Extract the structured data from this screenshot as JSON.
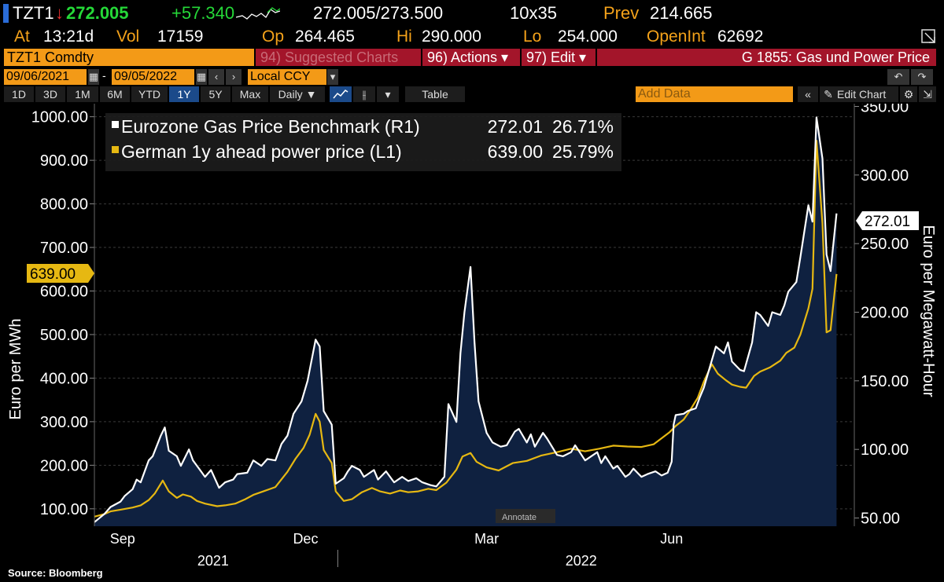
{
  "quote": {
    "ticker": "TZT1",
    "arrow": "↓",
    "last": "272.005",
    "change": "+57.340",
    "bid_ask": "272.005/273.500",
    "size": "10x35",
    "prev_label": "Prev",
    "prev": "214.665",
    "at_label": "At",
    "time": "13:21d",
    "vol_label": "Vol",
    "vol": "17159",
    "op_label": "Op",
    "open": "264.465",
    "hi_label": "Hi",
    "high": "290.000",
    "lo_label": "Lo",
    "low": "254.000",
    "oi_label": "OpenInt",
    "open_interest": "62692"
  },
  "menubar": {
    "security": "TZT1 Comdty",
    "suggested": "94) Suggested Charts",
    "actions": "96) Actions ▾",
    "edit": "97) Edit ▾",
    "title": "G 1855: Gas und Power Price"
  },
  "dates": {
    "start": "09/06/2021",
    "end": "09/05/2022",
    "currency": "Local CCY"
  },
  "toolbar": {
    "periods": [
      "1D",
      "3D",
      "1M",
      "6M",
      "YTD",
      "1Y",
      "5Y",
      "Max"
    ],
    "active_period": "1Y",
    "frequency": "Daily ▼",
    "table": "Table",
    "add_data": "Add Data",
    "edit_chart": "Edit Chart"
  },
  "source": "Source: Bloomberg",
  "annotate": "Annotate",
  "colors": {
    "gas": "#ffffff",
    "power": "#e6b812",
    "fill": "#0f2140",
    "accent": "#f39a17"
  },
  "chart_data": {
    "type": "line",
    "title": "",
    "legend": [
      {
        "text": "Eurozone Gas Price Benchmark (R1)",
        "last": "272.01",
        "pct": "26.71%"
      },
      {
        "text": "German 1y ahead power price (L1)",
        "last": "639.00",
        "pct": "25.79%"
      }
    ],
    "legend_position": "top-left",
    "ylabel_left": "Euro per MWh",
    "ylabel_right": "Euro per Megawatt-Hour",
    "y_left": {
      "ticks": [
        "100.00",
        "200.00",
        "300.00",
        "400.00",
        "500.00",
        "600.00",
        "700.00",
        "800.00",
        "900.00",
        "1000.00"
      ],
      "range": [
        60,
        1030
      ]
    },
    "y_right": {
      "ticks": [
        "50.00",
        "100.00",
        "150.00",
        "200.00",
        "250.00",
        "300.00",
        "350.00"
      ],
      "range": [
        44,
        352
      ]
    },
    "x_ticks": [
      "Sep",
      "Dec",
      "Mar",
      "Jun"
    ],
    "x_years": [
      "2021",
      "2022"
    ],
    "x_range": [
      "2021-09-01",
      "2022-09-06"
    ],
    "last_left": "639.00",
    "last_right": "272.01",
    "grid": true,
    "series": [
      {
        "name": "Eurozone Gas Price Benchmark",
        "axis": "right",
        "points": [
          [
            "2021-09-01",
            47
          ],
          [
            "2021-09-06",
            53
          ],
          [
            "2021-09-09",
            58
          ],
          [
            "2021-09-14",
            62
          ],
          [
            "2021-09-16",
            66
          ],
          [
            "2021-09-20",
            71
          ],
          [
            "2021-09-22",
            78
          ],
          [
            "2021-09-24",
            76
          ],
          [
            "2021-09-28",
            92
          ],
          [
            "2021-09-30",
            95
          ],
          [
            "2021-10-04",
            110
          ],
          [
            "2021-10-06",
            116
          ],
          [
            "2021-10-08",
            99
          ],
          [
            "2021-10-12",
            95
          ],
          [
            "2021-10-14",
            88
          ],
          [
            "2021-10-18",
            100
          ],
          [
            "2021-10-20",
            92
          ],
          [
            "2021-10-22",
            88
          ],
          [
            "2021-10-26",
            80
          ],
          [
            "2021-10-29",
            85
          ],
          [
            "2021-11-02",
            72
          ],
          [
            "2021-11-05",
            76
          ],
          [
            "2021-11-09",
            78
          ],
          [
            "2021-11-11",
            82
          ],
          [
            "2021-11-16",
            83
          ],
          [
            "2021-11-19",
            92
          ],
          [
            "2021-11-23",
            88
          ],
          [
            "2021-11-26",
            93
          ],
          [
            "2021-11-30",
            92
          ],
          [
            "2021-12-03",
            104
          ],
          [
            "2021-12-06",
            110
          ],
          [
            "2021-12-09",
            126
          ],
          [
            "2021-12-13",
            135
          ],
          [
            "2021-12-16",
            150
          ],
          [
            "2021-12-20",
            180
          ],
          [
            "2021-12-22",
            175
          ],
          [
            "2021-12-24",
            128
          ],
          [
            "2021-12-28",
            118
          ],
          [
            "2021-12-30",
            75
          ],
          [
            "2022-01-03",
            79
          ],
          [
            "2022-01-05",
            84
          ],
          [
            "2022-01-07",
            88
          ],
          [
            "2022-01-11",
            85
          ],
          [
            "2022-01-13",
            80
          ],
          [
            "2022-01-18",
            85
          ],
          [
            "2022-01-20",
            78
          ],
          [
            "2022-01-24",
            84
          ],
          [
            "2022-01-28",
            76
          ],
          [
            "2022-02-01",
            80
          ],
          [
            "2022-02-04",
            77
          ],
          [
            "2022-02-08",
            79
          ],
          [
            "2022-02-11",
            76
          ],
          [
            "2022-02-15",
            74
          ],
          [
            "2022-02-18",
            73
          ],
          [
            "2022-02-22",
            80
          ],
          [
            "2022-02-24",
            133
          ],
          [
            "2022-02-28",
            120
          ],
          [
            "2022-03-02",
            170
          ],
          [
            "2022-03-04",
            200
          ],
          [
            "2022-03-07",
            233
          ],
          [
            "2022-03-09",
            178
          ],
          [
            "2022-03-11",
            135
          ],
          [
            "2022-03-15",
            112
          ],
          [
            "2022-03-18",
            105
          ],
          [
            "2022-03-22",
            102
          ],
          [
            "2022-03-25",
            103
          ],
          [
            "2022-03-29",
            113
          ],
          [
            "2022-03-31",
            115
          ],
          [
            "2022-04-04",
            105
          ],
          [
            "2022-04-06",
            111
          ],
          [
            "2022-04-08",
            102
          ],
          [
            "2022-04-12",
            112
          ],
          [
            "2022-04-14",
            108
          ],
          [
            "2022-04-19",
            96
          ],
          [
            "2022-04-22",
            95
          ],
          [
            "2022-04-26",
            98
          ],
          [
            "2022-04-28",
            103
          ],
          [
            "2022-05-03",
            92
          ],
          [
            "2022-05-05",
            94
          ],
          [
            "2022-05-09",
            98
          ],
          [
            "2022-05-11",
            90
          ],
          [
            "2022-05-13",
            95
          ],
          [
            "2022-05-17",
            86
          ],
          [
            "2022-05-19",
            88
          ],
          [
            "2022-05-23",
            80
          ],
          [
            "2022-05-25",
            82
          ],
          [
            "2022-05-27",
            86
          ],
          [
            "2022-05-31",
            80
          ],
          [
            "2022-06-03",
            82
          ],
          [
            "2022-06-07",
            84
          ],
          [
            "2022-06-10",
            81
          ],
          [
            "2022-06-13",
            83
          ],
          [
            "2022-06-15",
            91
          ],
          [
            "2022-06-16",
            118
          ],
          [
            "2022-06-17",
            125
          ],
          [
            "2022-06-21",
            126
          ],
          [
            "2022-06-23",
            128
          ],
          [
            "2022-06-27",
            130
          ],
          [
            "2022-06-29",
            138
          ],
          [
            "2022-07-01",
            145
          ],
          [
            "2022-07-05",
            165
          ],
          [
            "2022-07-07",
            175
          ],
          [
            "2022-07-11",
            170
          ],
          [
            "2022-07-13",
            178
          ],
          [
            "2022-07-15",
            164
          ],
          [
            "2022-07-19",
            158
          ],
          [
            "2022-07-21",
            157
          ],
          [
            "2022-07-25",
            178
          ],
          [
            "2022-07-27",
            200
          ],
          [
            "2022-07-29",
            198
          ],
          [
            "2022-08-02",
            190
          ],
          [
            "2022-08-04",
            200
          ],
          [
            "2022-08-08",
            198
          ],
          [
            "2022-08-10",
            205
          ],
          [
            "2022-08-12",
            215
          ],
          [
            "2022-08-16",
            222
          ],
          [
            "2022-08-18",
            240
          ],
          [
            "2022-08-22",
            278
          ],
          [
            "2022-08-24",
            266
          ],
          [
            "2022-08-26",
            342
          ],
          [
            "2022-08-29",
            312
          ],
          [
            "2022-08-31",
            242
          ],
          [
            "2022-09-02",
            230
          ],
          [
            "2022-09-05",
            272
          ]
        ]
      },
      {
        "name": "German 1y ahead power price",
        "axis": "left",
        "points": [
          [
            "2021-09-01",
            82
          ],
          [
            "2021-09-06",
            88
          ],
          [
            "2021-09-09",
            94
          ],
          [
            "2021-09-14",
            98
          ],
          [
            "2021-09-20",
            103
          ],
          [
            "2021-09-24",
            108
          ],
          [
            "2021-09-28",
            120
          ],
          [
            "2021-10-01",
            135
          ],
          [
            "2021-10-05",
            165
          ],
          [
            "2021-10-08",
            140
          ],
          [
            "2021-10-12",
            125
          ],
          [
            "2021-10-15",
            133
          ],
          [
            "2021-10-19",
            128
          ],
          [
            "2021-10-22",
            118
          ],
          [
            "2021-10-26",
            112
          ],
          [
            "2021-11-01",
            106
          ],
          [
            "2021-11-05",
            108
          ],
          [
            "2021-11-10",
            112
          ],
          [
            "2021-11-15",
            122
          ],
          [
            "2021-11-19",
            132
          ],
          [
            "2021-11-24",
            140
          ],
          [
            "2021-11-30",
            150
          ],
          [
            "2021-12-06",
            185
          ],
          [
            "2021-12-10",
            215
          ],
          [
            "2021-12-14",
            240
          ],
          [
            "2021-12-17",
            270
          ],
          [
            "2021-12-20",
            318
          ],
          [
            "2021-12-22",
            300
          ],
          [
            "2021-12-24",
            235
          ],
          [
            "2021-12-28",
            205
          ],
          [
            "2021-12-30",
            140
          ],
          [
            "2022-01-03",
            118
          ],
          [
            "2022-01-07",
            122
          ],
          [
            "2022-01-12",
            138
          ],
          [
            "2022-01-17",
            148
          ],
          [
            "2022-01-21",
            140
          ],
          [
            "2022-01-26",
            135
          ],
          [
            "2022-01-31",
            142
          ],
          [
            "2022-02-04",
            138
          ],
          [
            "2022-02-09",
            140
          ],
          [
            "2022-02-14",
            146
          ],
          [
            "2022-02-18",
            143
          ],
          [
            "2022-02-23",
            160
          ],
          [
            "2022-02-28",
            190
          ],
          [
            "2022-03-03",
            220
          ],
          [
            "2022-03-07",
            228
          ],
          [
            "2022-03-10",
            208
          ],
          [
            "2022-03-15",
            195
          ],
          [
            "2022-03-21",
            188
          ],
          [
            "2022-03-28",
            205
          ],
          [
            "2022-04-04",
            210
          ],
          [
            "2022-04-11",
            222
          ],
          [
            "2022-04-19",
            230
          ],
          [
            "2022-04-26",
            238
          ],
          [
            "2022-05-03",
            232
          ],
          [
            "2022-05-10",
            238
          ],
          [
            "2022-05-17",
            245
          ],
          [
            "2022-05-24",
            243
          ],
          [
            "2022-05-31",
            242
          ],
          [
            "2022-06-06",
            248
          ],
          [
            "2022-06-10",
            262
          ],
          [
            "2022-06-14",
            276
          ],
          [
            "2022-06-17",
            290
          ],
          [
            "2022-06-21",
            305
          ],
          [
            "2022-06-24",
            325
          ],
          [
            "2022-06-28",
            355
          ],
          [
            "2022-07-01",
            392
          ],
          [
            "2022-07-05",
            432
          ],
          [
            "2022-07-08",
            410
          ],
          [
            "2022-07-12",
            395
          ],
          [
            "2022-07-15",
            385
          ],
          [
            "2022-07-19",
            380
          ],
          [
            "2022-07-22",
            378
          ],
          [
            "2022-07-26",
            405
          ],
          [
            "2022-07-29",
            415
          ],
          [
            "2022-08-03",
            425
          ],
          [
            "2022-08-08",
            440
          ],
          [
            "2022-08-11",
            458
          ],
          [
            "2022-08-15",
            470
          ],
          [
            "2022-08-18",
            500
          ],
          [
            "2022-08-22",
            560
          ],
          [
            "2022-08-24",
            605
          ],
          [
            "2022-08-26",
            945
          ],
          [
            "2022-08-29",
            755
          ],
          [
            "2022-08-31",
            505
          ],
          [
            "2022-09-02",
            510
          ],
          [
            "2022-09-05",
            639
          ]
        ]
      }
    ]
  }
}
